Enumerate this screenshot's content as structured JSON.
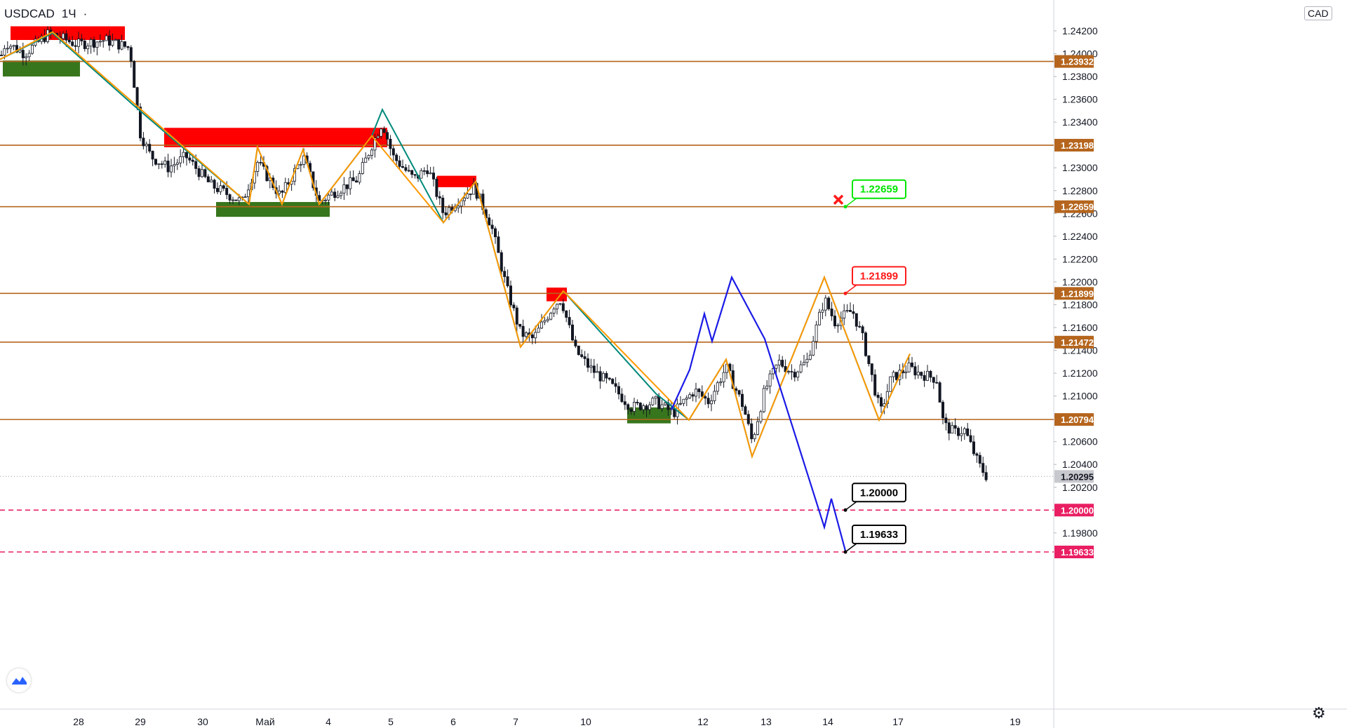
{
  "header": {
    "symbol": "USDCAD",
    "interval": "1Ч",
    "dot": "·",
    "currency": "CAD"
  },
  "colors": {
    "level": "#b5651d",
    "red_zone": "#ff0000",
    "green_zone": "#38761d",
    "teal": "#00897b",
    "orange": "#ff9800",
    "blue": "#1a1ae6",
    "dashed": "#e91e63",
    "bull": "#ffffff",
    "bear": "#131722"
  },
  "chart_data": {
    "type": "candlestick",
    "symbol": "USDCAD",
    "timeframe": "1H",
    "ylim": [
      1.1935,
      1.244
    ],
    "y_ticks": [
      "1.24200",
      "1.24000",
      "1.23800",
      "1.23600",
      "1.23400",
      "1.23000",
      "1.22800",
      "1.22600",
      "1.22400",
      "1.22200",
      "1.22000",
      "1.21800",
      "1.21600",
      "1.21400",
      "1.21200",
      "1.21000",
      "1.20600",
      "1.20400",
      "1.20200",
      "1.19800"
    ],
    "x_ticks": [
      "28",
      "29",
      "30",
      "Май",
      "4",
      "5",
      "6",
      "7",
      "10",
      "12",
      "13",
      "14",
      "17",
      "19"
    ],
    "price_path": [
      [
        0,
        1.2395
      ],
      [
        8,
        1.241
      ],
      [
        35,
        1.24
      ],
      [
        70,
        1.2418
      ],
      [
        110,
        1.2408
      ],
      [
        150,
        1.2412
      ],
      [
        185,
        1.2405
      ],
      [
        190,
        1.238
      ],
      [
        200,
        1.233
      ],
      [
        215,
        1.231
      ],
      [
        240,
        1.23
      ],
      [
        265,
        1.231
      ],
      [
        300,
        1.2285
      ],
      [
        345,
        1.227
      ],
      [
        367,
        1.2305
      ],
      [
        400,
        1.2275
      ],
      [
        432,
        1.231
      ],
      [
        455,
        1.227
      ],
      [
        480,
        1.228
      ],
      [
        510,
        1.229
      ],
      [
        530,
        1.232
      ],
      [
        545,
        1.234
      ],
      [
        560,
        1.231
      ],
      [
        590,
        1.229
      ],
      [
        610,
        1.23
      ],
      [
        632,
        1.226
      ],
      [
        660,
        1.2275
      ],
      [
        676,
        1.2283
      ],
      [
        700,
        1.225
      ],
      [
        722,
        1.2195
      ],
      [
        742,
        1.2155
      ],
      [
        760,
        1.215
      ],
      [
        790,
        1.218
      ],
      [
        800,
        1.2185
      ],
      [
        820,
        1.214
      ],
      [
        840,
        1.2125
      ],
      [
        870,
        1.211
      ],
      [
        900,
        1.209
      ],
      [
        935,
        1.2095
      ],
      [
        960,
        1.2085
      ],
      [
        990,
        1.2105
      ],
      [
        1010,
        1.2095
      ],
      [
        1035,
        1.2125
      ],
      [
        1060,
        1.209
      ],
      [
        1072,
        1.206
      ],
      [
        1090,
        1.2105
      ],
      [
        1110,
        1.213
      ],
      [
        1130,
        1.212
      ],
      [
        1150,
        1.213
      ],
      [
        1175,
        1.2185
      ],
      [
        1190,
        1.2165
      ],
      [
        1215,
        1.2175
      ],
      [
        1230,
        1.215
      ],
      [
        1255,
        1.2085
      ],
      [
        1270,
        1.2115
      ],
      [
        1295,
        1.2125
      ],
      [
        1310,
        1.212
      ],
      [
        1335,
        1.2115
      ],
      [
        1345,
        1.2075
      ],
      [
        1360,
        1.2068
      ],
      [
        1375,
        1.207
      ],
      [
        1395,
        1.204
      ],
      [
        1408,
        1.2028
      ]
    ],
    "levels": [
      1.23932,
      1.23198,
      1.22659,
      1.21899,
      1.21472,
      1.20794
    ],
    "dashed_levels": [
      1.2,
      1.19633
    ],
    "last_price": 1.20295,
    "zones": [
      {
        "kind": "supply",
        "x": [
          15,
          178
        ],
        "y": [
          1.2424,
          1.2412
        ]
      },
      {
        "kind": "demand",
        "x": [
          4,
          114
        ],
        "y": [
          1.2394,
          1.238
        ]
      },
      {
        "kind": "supply",
        "x": [
          234,
          552
        ],
        "y": [
          1.2335,
          1.2318
        ]
      },
      {
        "kind": "demand",
        "x": [
          308,
          470
        ],
        "y": [
          1.227,
          1.2257
        ]
      },
      {
        "kind": "supply",
        "x": [
          623,
          679
        ],
        "y": [
          1.2293,
          1.2283
        ]
      },
      {
        "kind": "supply",
        "x": [
          779,
          808
        ],
        "y": [
          1.2195,
          1.2183
        ]
      },
      {
        "kind": "demand",
        "x": [
          894,
          956
        ],
        "y": [
          1.209,
          1.2076
        ]
      }
    ],
    "teal_path": [
      [
        0,
        1.2395
      ],
      [
        75,
        1.2418
      ],
      [
        190,
        1.2355
      ],
      [
        355,
        1.2268
      ],
      [
        367,
        1.2318
      ],
      [
        402,
        1.2268
      ],
      [
        432,
        1.2316
      ],
      [
        455,
        1.2268
      ],
      [
        530,
        1.2328
      ],
      [
        545,
        1.2351
      ],
      [
        632,
        1.2252
      ],
      [
        678,
        1.2288
      ],
      [
        742,
        1.2143
      ],
      [
        803,
        1.2192
      ],
      [
        935,
        1.2102
      ],
      [
        982,
        1.2079
      ],
      [
        1035,
        1.2132
      ],
      [
        1072,
        1.2047
      ],
      [
        1175,
        1.2204
      ],
      [
        1253,
        1.2079
      ],
      [
        1297,
        1.2137
      ]
    ],
    "orange_path": [
      [
        0,
        1.2395
      ],
      [
        75,
        1.2419
      ],
      [
        355,
        1.2268
      ],
      [
        367,
        1.2318
      ],
      [
        402,
        1.2268
      ],
      [
        432,
        1.2316
      ],
      [
        455,
        1.2268
      ],
      [
        530,
        1.2328
      ],
      [
        632,
        1.2252
      ],
      [
        678,
        1.2288
      ],
      [
        742,
        1.2143
      ],
      [
        803,
        1.2192
      ],
      [
        982,
        1.2079
      ],
      [
        1035,
        1.2132
      ],
      [
        1072,
        1.2047
      ],
      [
        1175,
        1.2204
      ],
      [
        1253,
        1.2079
      ],
      [
        1297,
        1.2137
      ]
    ],
    "blue_path": [
      [
        957,
        1.2088
      ],
      [
        983,
        1.2123
      ],
      [
        1004,
        1.2172
      ],
      [
        1015,
        1.2148
      ],
      [
        1043,
        1.2204
      ],
      [
        1090,
        1.215
      ],
      [
        1175,
        1.1985
      ],
      [
        1185,
        1.201
      ],
      [
        1206,
        1.1962
      ]
    ],
    "callouts": [
      {
        "label": "1.22659",
        "color": "#00e600",
        "point": [
          1205,
          1.22659
        ]
      },
      {
        "label": "1.21899",
        "color": "#ff1a1a",
        "point": [
          1205,
          1.21899
        ]
      },
      {
        "label": "1.20000",
        "color": "#000000",
        "point": [
          1205,
          1.2
        ]
      },
      {
        "label": "1.19633",
        "color": "#000000",
        "point": [
          1205,
          1.19633
        ]
      }
    ],
    "cancel_marker": [
      1195,
      1.2272
    ]
  }
}
